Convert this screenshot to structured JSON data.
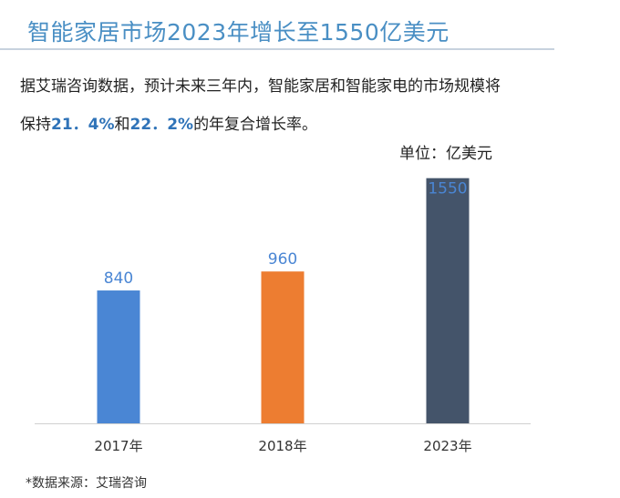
{
  "title": "智能家居市场2023年增长至1550亿美元",
  "description": {
    "line1": "据艾瑞咨询数据，预计未来三年内，智能家居和智能家电的市场规模将",
    "line2_prefix": "保持",
    "rate1": "21．4%",
    "line2_mid": "和",
    "rate2": "22．2%",
    "line2_suffix": "的年复合增长率。"
  },
  "unit_label": "单位：亿美元",
  "footnote": "*数据来源：艾瑞咨询",
  "chart_data": {
    "type": "bar",
    "categories": [
      "2017年",
      "2018年",
      "2023年"
    ],
    "values": [
      840,
      960,
      1550
    ],
    "colors": [
      "#4a86d4",
      "#ed7d31",
      "#44546a"
    ],
    "label_color": "#4a86d4",
    "ylim": [
      0,
      1600
    ],
    "grid": false,
    "unit": "亿美元"
  }
}
